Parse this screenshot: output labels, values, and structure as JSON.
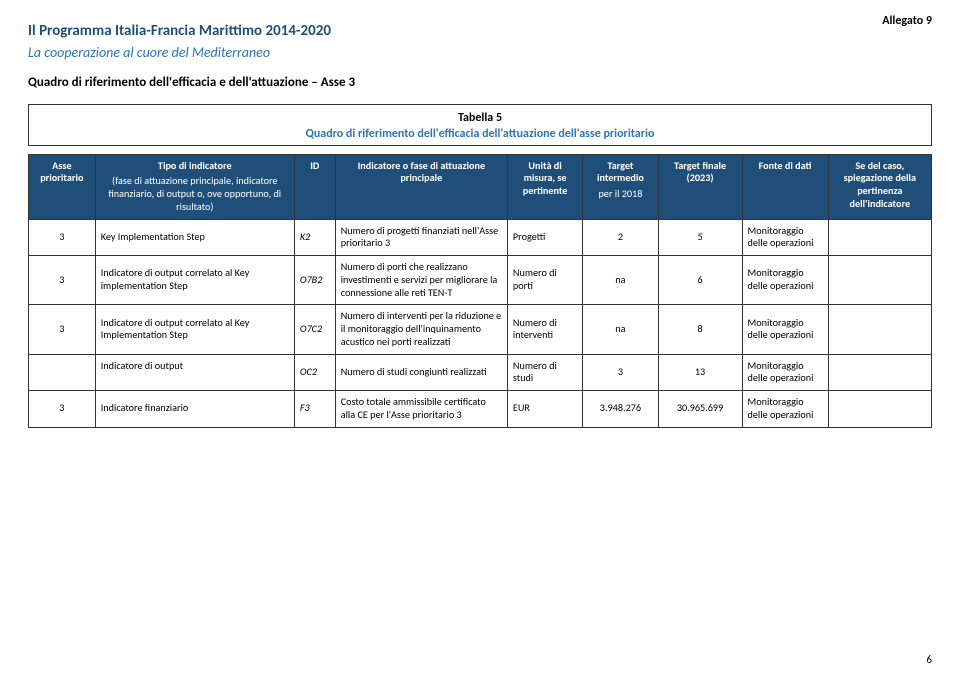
{
  "meta": {
    "allegato": "Allegato 9",
    "title": "Il Programma Italia-Francia Marittimo 2014-2020",
    "subtitle": "La cooperazione al cuore del Mediterraneo",
    "section": "Quadro di riferimento dell'efficacia e dell'attuazione – Asse 3",
    "pagenum": "6"
  },
  "table": {
    "caption": "Tabella 5",
    "subcaption": "Quadro di riferimento dell'efficacia dell'attuazione dell'asse prioritario",
    "headers": {
      "col1": "Asse prioritario",
      "col2_main": "Tipo di indicatore",
      "col2_sub": "(fase di attuazione principale, indicatore finanziario, di output o, ove opportuno, di risultato)",
      "col3": "ID",
      "col4": "Indicatore o fase di attuazione principale",
      "col5": "Unità di misura, se pertinente",
      "col6_main": "Target intermedio",
      "col6_sub": "per il 2018",
      "col7": "Target finale (2023)",
      "col8": "Fonte di dati",
      "col9": "Se del caso, spiegazione della pertinenza dell'indicatore"
    },
    "rows": [
      {
        "asse": "3",
        "tipo": "Key Implementation Step",
        "id": "K2",
        "indicatore": "Numero di progetti finanziati nell'Asse prioritario 3",
        "unita": "Progetti",
        "target_int": "2",
        "target_fin": "5",
        "fonte": "Monitoraggio delle operazioni",
        "spieg": ""
      },
      {
        "asse": "3",
        "tipo": "Indicatore di output correlato al Key implementation Step",
        "id": "O7B2",
        "indicatore": "Numero di porti che realizzano investimenti e servizi per migliorare la connessione alle reti TEN-T",
        "unita": "Numero di porti",
        "target_int": "na",
        "target_fin": "6",
        "fonte": "Monitoraggio delle operazioni",
        "spieg": ""
      },
      {
        "asse": "3",
        "tipo": "Indicatore di output correlato al Key Implementation Step",
        "id": "O7C2",
        "indicatore": "Numero di interventi per la riduzione e il monitoraggio dell'inquinamento acustico nei porti realizzati",
        "unita": "Numero di interventi",
        "target_int": "na",
        "target_fin": "8",
        "fonte": "Monitoraggio delle operazioni",
        "spieg": ""
      },
      {
        "asse": "",
        "tipo": "Indicatore di output",
        "id": "OC2",
        "indicatore": "Numero di studi congiunti realizzati",
        "unita": "Numero di studi",
        "target_int": "3",
        "target_fin": "13",
        "fonte": "Monitoraggio delle operazioni",
        "spieg": ""
      },
      {
        "asse": "3",
        "tipo": "Indicatore finanziario",
        "id": "F3",
        "indicatore": "Costo totale ammissibile certificato alla CE per l'Asse prioritario 3",
        "unita": "EUR",
        "target_int": "3.948.276",
        "target_fin": "30.965.699",
        "fonte": "Monitoraggio delle operazioni",
        "spieg": ""
      }
    ]
  }
}
